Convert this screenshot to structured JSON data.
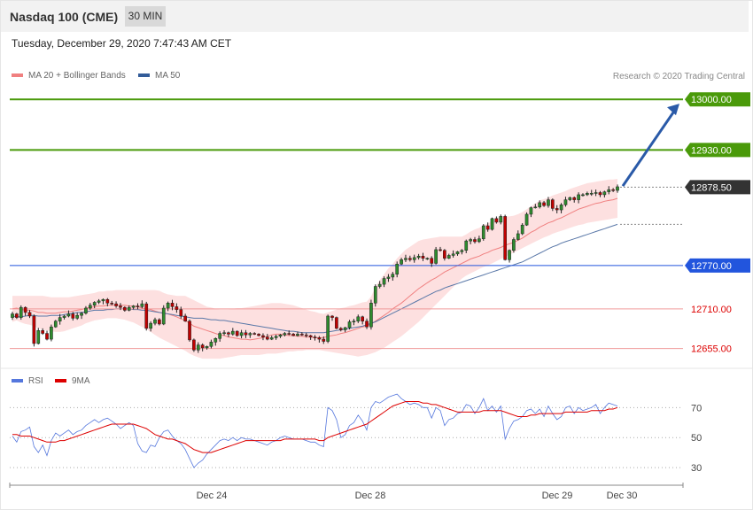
{
  "header": {
    "title": "Nasdaq 100 (CME)",
    "timeframe": "30 MIN"
  },
  "timestamp": "Tuesday, December 29, 2020 7:47:43 AM CET",
  "legend": {
    "ma20": "MA 20 + Bollinger Bands",
    "ma50": "MA 50",
    "ma20_color": "#f08080",
    "ma50_color": "#335c99"
  },
  "credit": "Research © 2020 Trading Central",
  "rsi_legend": {
    "rsi": "RSI",
    "ma": "9MA",
    "rsi_color": "#5577dd",
    "ma_color": "#dd0000"
  },
  "chart_data": {
    "type": "candlestick",
    "ylim": [
      12635,
      13015
    ],
    "levels": [
      {
        "value": 13000,
        "label": "13000.00",
        "color": "#4a9a0a",
        "kind": "resistance"
      },
      {
        "value": 12930,
        "label": "12930.00",
        "color": "#4a9a0a",
        "kind": "resistance"
      },
      {
        "value": 12878.5,
        "label": "12878.50",
        "color": "#333333",
        "kind": "last"
      },
      {
        "value": 12770,
        "label": "12770.00",
        "color": "#2255dd",
        "kind": "pivot"
      },
      {
        "value": 12710,
        "label": "12710.00",
        "color": "#dd0000",
        "kind": "support"
      },
      {
        "value": 12655,
        "label": "12655.00",
        "color": "#dd0000",
        "kind": "support"
      }
    ],
    "x_ticks": [
      "Dec 24",
      "Dec 28",
      "Dec 29",
      "Dec 30"
    ],
    "rsi": {
      "ylim": [
        20,
        82
      ],
      "ticks": [
        70,
        50,
        30
      ]
    },
    "arrow": {
      "from": 12880,
      "to": 12994,
      "color": "#2a5aa8"
    },
    "close": [
      12703,
      12698,
      12712,
      12705,
      12700,
      12662,
      12680,
      12676,
      12668,
      12685,
      12693,
      12698,
      12700,
      12703,
      12697,
      12701,
      12704,
      12711,
      12715,
      12719,
      12721,
      12723,
      12718,
      12717,
      12714,
      12712,
      12708,
      12712,
      12714,
      12713,
      12717,
      12683,
      12690,
      12695,
      12689,
      12711,
      12718,
      12713,
      12709,
      12700,
      12693,
      12667,
      12653,
      12660,
      12656,
      12658,
      12664,
      12669,
      12676,
      12677,
      12675,
      12679,
      12673,
      12677,
      12674,
      12676,
      12675,
      12673,
      12671,
      12668,
      12670,
      12672,
      12674,
      12676,
      12675,
      12673,
      12675,
      12674,
      12673,
      12671,
      12670,
      12668,
      12665,
      12700,
      12698,
      12683,
      12681,
      12684,
      12692,
      12693,
      12699,
      12693,
      12685,
      12718,
      12741,
      12744,
      12752,
      12754,
      12758,
      12772,
      12778,
      12780,
      12778,
      12781,
      12783,
      12780,
      12780,
      12773,
      12792,
      12791,
      12780,
      12784,
      12786,
      12789,
      12791,
      12804,
      12806,
      12803,
      12807,
      12825,
      12820,
      12835,
      12830,
      12838,
      12778,
      12791,
      12806,
      12814,
      12826,
      12841,
      12850,
      12851,
      12857,
      12853,
      12861,
      12849,
      12847,
      12854,
      12861,
      12864,
      12861,
      12868,
      12868,
      12870,
      12870,
      12871,
      12868,
      12872,
      12875,
      12874,
      12879
    ],
    "ma20": [
      12710,
      12711,
      12709,
      12708,
      12708,
      12707,
      12705,
      12705,
      12704,
      12704,
      12704,
      12705,
      12706,
      12706,
      12707,
      12708,
      12709,
      12711,
      12712,
      12713,
      12714,
      12714,
      12715,
      12715,
      12715,
      12715,
      12715,
      12714,
      12714,
      12713,
      12711,
      12710,
      12709,
      12707,
      12705,
      12704,
      12703,
      12701,
      12699,
      12696,
      12694,
      12690,
      12686,
      12684,
      12682,
      12680,
      12678,
      12676,
      12674,
      12673,
      12671,
      12670,
      12669,
      12668,
      12668,
      12667,
      12668,
      12669,
      12670,
      12672,
      12674,
      12675,
      12675,
      12674,
      12673,
      12673,
      12672,
      12672,
      12671,
      12671,
      12670,
      12670,
      12670,
      12672,
      12673,
      12674,
      12676,
      12677,
      12679,
      12681,
      12683,
      12685,
      12686,
      12689,
      12693,
      12697,
      12701,
      12705,
      12710,
      12714,
      12718,
      12723,
      12728,
      12733,
      12738,
      12742,
      12746,
      12750,
      12753,
      12757,
      12761,
      12764,
      12767,
      12770,
      12773,
      12776,
      12779,
      12781,
      12783,
      12786,
      12788,
      12791,
      12793,
      12795,
      12798,
      12800,
      12802,
      12805,
      12808,
      12812,
      12816,
      12819,
      12823,
      12826,
      12829,
      12831,
      12834,
      12836,
      12839,
      12842,
      12845,
      12848,
      12850,
      12852,
      12854,
      12856,
      12857,
      12859,
      12860,
      12861,
      12863
    ],
    "bb_upper": [
      12728,
      12728,
      12728,
      12728,
      12728,
      12728,
      12728,
      12728,
      12727,
      12726,
      12726,
      12726,
      12726,
      12726,
      12727,
      12728,
      12729,
      12730,
      12731,
      12732,
      12734,
      12734,
      12735,
      12735,
      12736,
      12736,
      12736,
      12736,
      12736,
      12736,
      12736,
      12736,
      12736,
      12736,
      12735,
      12732,
      12730,
      12729,
      12728,
      12728,
      12728,
      12725,
      12722,
      12719,
      12716,
      12713,
      12712,
      12710,
      12709,
      12709,
      12709,
      12710,
      12711,
      12711,
      12712,
      12713,
      12714,
      12715,
      12716,
      12717,
      12718,
      12718,
      12718,
      12717,
      12716,
      12715,
      12713,
      12711,
      12709,
      12707,
      12706,
      12704,
      12703,
      12705,
      12707,
      12709,
      12711,
      12712,
      12714,
      12715,
      12717,
      12719,
      12720,
      12727,
      12740,
      12750,
      12758,
      12766,
      12772,
      12780,
      12786,
      12792,
      12796,
      12800,
      12804,
      12806,
      12807,
      12808,
      12809,
      12810,
      12810,
      12810,
      12810,
      12810,
      12810,
      12813,
      12817,
      12820,
      12822,
      12826,
      12828,
      12832,
      12835,
      12838,
      12838,
      12838,
      12839,
      12841,
      12844,
      12848,
      12852,
      12856,
      12860,
      12862,
      12864,
      12867,
      12869,
      12871,
      12873,
      12876,
      12878,
      12880,
      12882,
      12884,
      12885,
      12886,
      12887,
      12888,
      12889,
      12889,
      12890
    ],
    "bb_lower": [
      12692,
      12694,
      12691,
      12689,
      12688,
      12686,
      12683,
      12681,
      12680,
      12679,
      12678,
      12678,
      12679,
      12681,
      12683,
      12685,
      12687,
      12690,
      12692,
      12694,
      12695,
      12696,
      12697,
      12697,
      12697,
      12696,
      12695,
      12693,
      12691,
      12688,
      12685,
      12682,
      12678,
      12674,
      12670,
      12667,
      12664,
      12661,
      12658,
      12655,
      12652,
      12648,
      12645,
      12643,
      12641,
      12641,
      12641,
      12641,
      12641,
      12642,
      12643,
      12644,
      12645,
      12646,
      12646,
      12646,
      12646,
      12646,
      12647,
      12648,
      12648,
      12648,
      12649,
      12650,
      12651,
      12651,
      12652,
      12652,
      12653,
      12653,
      12653,
      12653,
      12652,
      12651,
      12650,
      12649,
      12648,
      12647,
      12646,
      12645,
      12644,
      12645,
      12646,
      12648,
      12650,
      12653,
      12656,
      12660,
      12664,
      12668,
      12672,
      12677,
      12682,
      12687,
      12692,
      12698,
      12704,
      12710,
      12716,
      12722,
      12728,
      12734,
      12740,
      12746,
      12752,
      12756,
      12759,
      12762,
      12765,
      12768,
      12770,
      12773,
      12776,
      12779,
      12782,
      12785,
      12788,
      12791,
      12794,
      12797,
      12800,
      12803,
      12806,
      12809,
      12811,
      12814,
      12816,
      12818,
      12820,
      12822,
      12824,
      12826,
      12827,
      12829,
      12830,
      12831,
      12832,
      12833,
      12834,
      12835,
      12836
    ],
    "ma50": [
      12700,
      12699,
      12699,
      12700,
      12701,
      12701,
      12700,
      12700,
      12700,
      12701,
      12701,
      12701,
      12702,
      12703,
      12704,
      12705,
      12705,
      12706,
      12707,
      12708,
      12708,
      12708,
      12709,
      12709,
      12710,
      12710,
      12710,
      12710,
      12709,
      12709,
      12708,
      12708,
      12707,
      12706,
      12705,
      12704,
      12703,
      12702,
      12701,
      12700,
      12699,
      12698,
      12697,
      12697,
      12697,
      12696,
      12695,
      12695,
      12694,
      12694,
      12693,
      12692,
      12691,
      12690,
      12689,
      12688,
      12687,
      12686,
      12685,
      12684,
      12683,
      12682,
      12681,
      12680,
      12679,
      12679,
      12678,
      12677,
      12677,
      12677,
      12677,
      12677,
      12677,
      12678,
      12679,
      12680,
      12681,
      12682,
      12683,
      12684,
      12685,
      12686,
      12688,
      12690,
      12692,
      12695,
      12698,
      12701,
      12704,
      12707,
      12710,
      12713,
      12716,
      12719,
      12722,
      12725,
      12728,
      12731,
      12734,
      12736,
      12739,
      12741,
      12743,
      12745,
      12747,
      12749,
      12751,
      12753,
      12755,
      12757,
      12759,
      12761,
      12763,
      12765,
      12767,
      12769,
      12771,
      12773,
      12775,
      12778,
      12781,
      12784,
      12787,
      12790,
      12793,
      12796,
      12798,
      12801,
      12803,
      12805,
      12807,
      12809,
      12811,
      12813,
      12815,
      12817,
      12819,
      12821,
      12823,
      12825,
      12827
    ],
    "rsi_values": [
      51,
      47,
      54,
      55,
      57,
      44,
      40,
      45,
      38,
      48,
      53,
      51,
      53,
      55,
      52,
      54,
      55,
      58,
      60,
      62,
      60,
      62,
      63,
      61,
      59,
      56,
      58,
      60,
      58,
      46,
      41,
      40,
      45,
      44,
      50,
      54,
      55,
      51,
      48,
      46,
      42,
      36,
      30,
      33,
      35,
      39,
      42,
      45,
      48,
      49,
      48,
      50,
      48,
      50,
      49,
      49,
      48,
      47,
      46,
      45,
      47,
      48,
      50,
      51,
      50,
      49,
      49,
      49,
      48,
      47,
      47,
      45,
      44,
      70,
      68,
      62,
      50,
      52,
      58,
      60,
      65,
      61,
      55,
      70,
      74,
      73,
      75,
      77,
      78,
      79,
      76,
      74,
      72,
      73,
      72,
      70,
      70,
      63,
      70,
      68,
      58,
      62,
      63,
      66,
      67,
      72,
      71,
      66,
      70,
      76,
      68,
      71,
      67,
      71,
      49,
      56,
      61,
      62,
      64,
      68,
      69,
      66,
      69,
      64,
      71,
      66,
      62,
      64,
      70,
      71,
      66,
      70,
      68,
      69,
      70,
      72,
      66,
      70,
      73,
      72,
      71
    ],
    "rsi_ma9": [
      52,
      52,
      51,
      51,
      51,
      50,
      49,
      48,
      47,
      47,
      47,
      48,
      48,
      49,
      50,
      51,
      52,
      53,
      54,
      55,
      56,
      57,
      58,
      59,
      59,
      59,
      59,
      59,
      59,
      58,
      57,
      56,
      54,
      52,
      51,
      50,
      49,
      49,
      48,
      47,
      46,
      44,
      42,
      41,
      40,
      40,
      40,
      41,
      42,
      43,
      44,
      45,
      46,
      47,
      48,
      48,
      48,
      48,
      48,
      48,
      48,
      48,
      48,
      49,
      49,
      49,
      49,
      49,
      49,
      49,
      49,
      48,
      48,
      50,
      51,
      52,
      53,
      54,
      55,
      56,
      57,
      58,
      59,
      61,
      63,
      65,
      67,
      69,
      71,
      72,
      73,
      74,
      74,
      74,
      74,
      73,
      73,
      72,
      72,
      71,
      70,
      69,
      68,
      67,
      67,
      67,
      67,
      67,
      67,
      68,
      68,
      68,
      68,
      68,
      67,
      66,
      65,
      64,
      64,
      64,
      65,
      65,
      66,
      66,
      66,
      66,
      66,
      66,
      67,
      67,
      67,
      67,
      67,
      67,
      68,
      68,
      68,
      68,
      69,
      69,
      70
    ]
  }
}
